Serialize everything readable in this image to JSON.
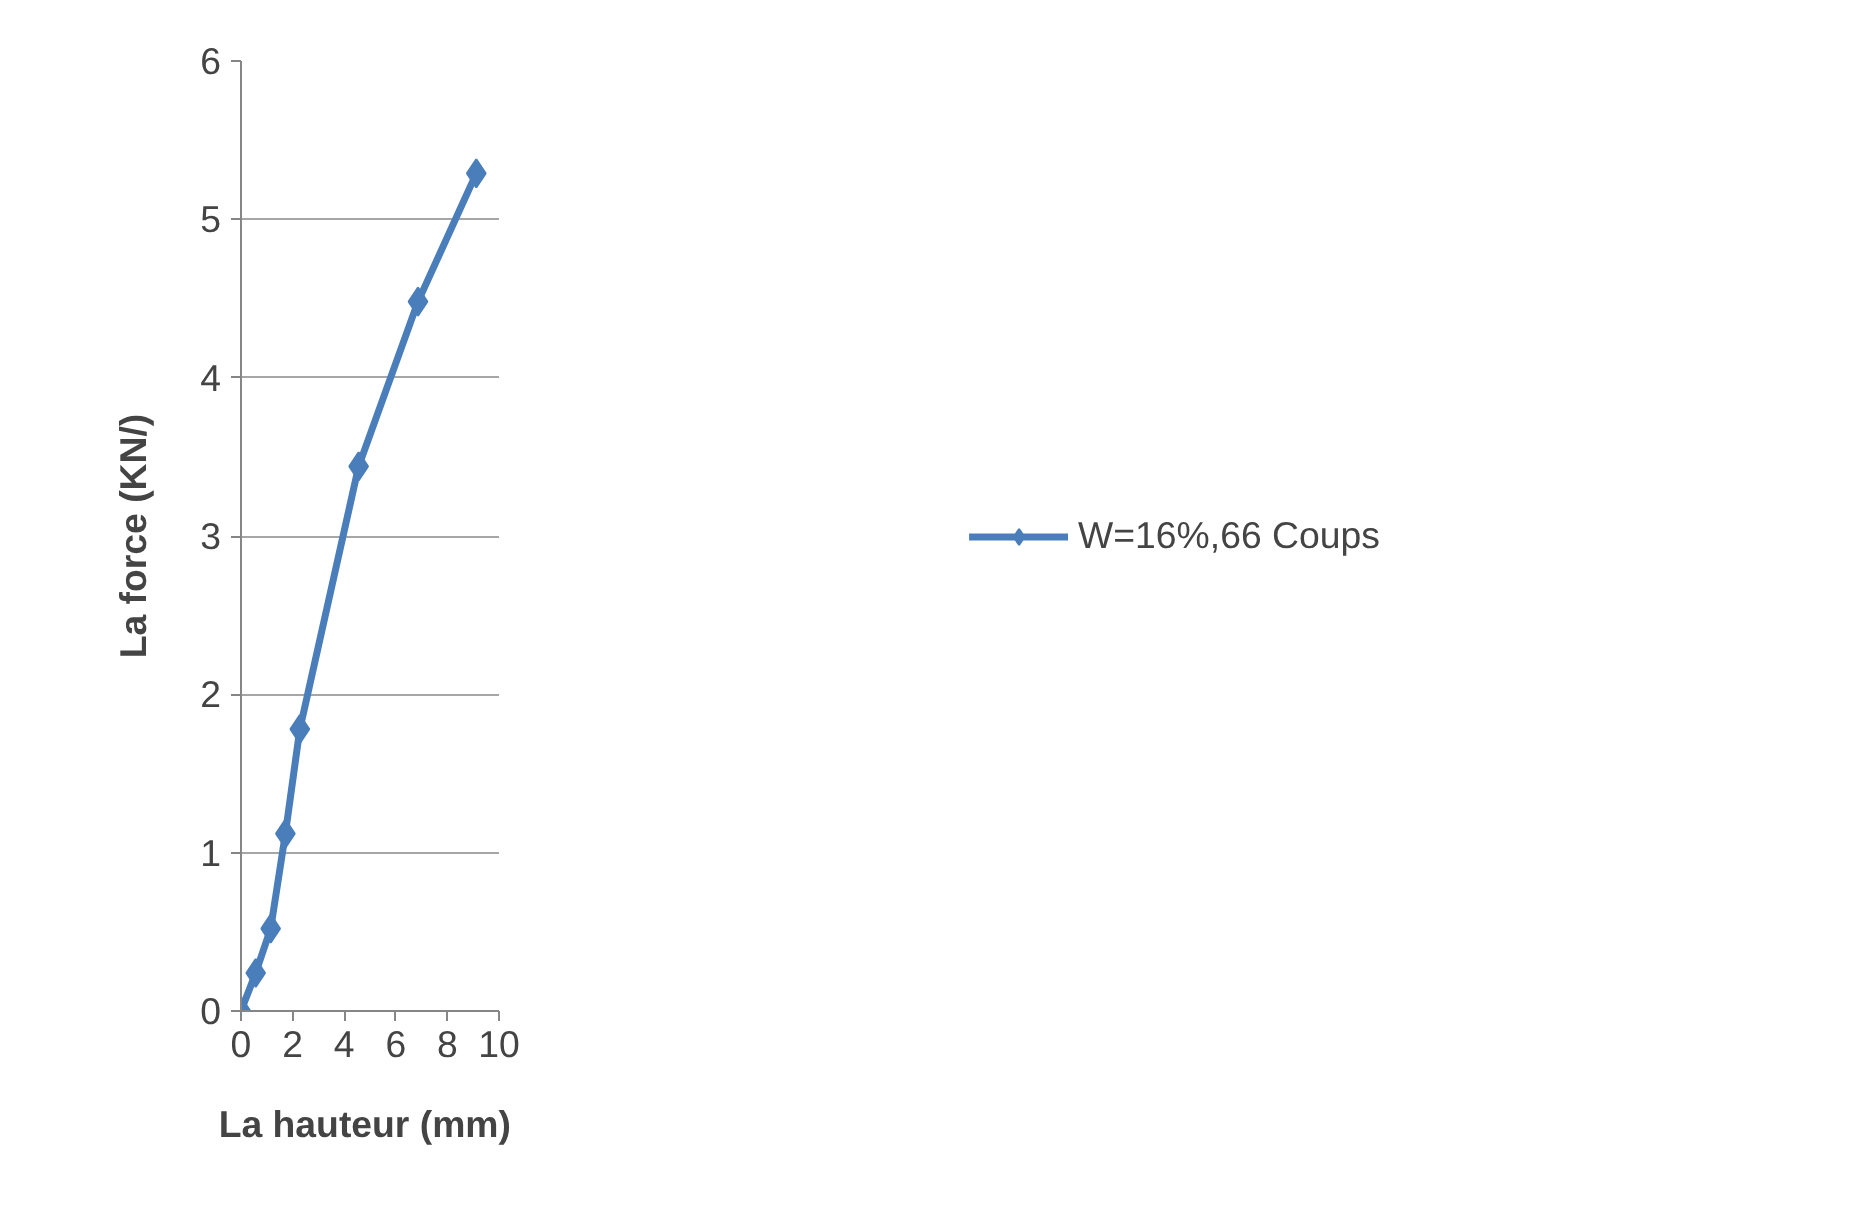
{
  "chart_data": {
    "type": "line",
    "xlabel": "La  hauteur (mm)",
    "ylabel": "La force (KN/)",
    "x": [
      0,
      0.57,
      1.15,
      1.72,
      2.28,
      4.56,
      6.86,
      9.12
    ],
    "series": [
      {
        "name": "W=16%,66 Coups",
        "color": "#4a7ebb",
        "values": [
          0,
          0.24,
          0.52,
          1.12,
          1.78,
          3.44,
          4.48,
          5.29
        ]
      }
    ],
    "xlim": [
      0,
      10
    ],
    "xticks": [
      0,
      2,
      4,
      6,
      8,
      10
    ],
    "ylim": [
      0,
      6
    ],
    "yticks": [
      0,
      1,
      2,
      3,
      4,
      5,
      6
    ],
    "grid": "y",
    "legend": "right",
    "marker": "diamond",
    "line_style": "solid"
  }
}
